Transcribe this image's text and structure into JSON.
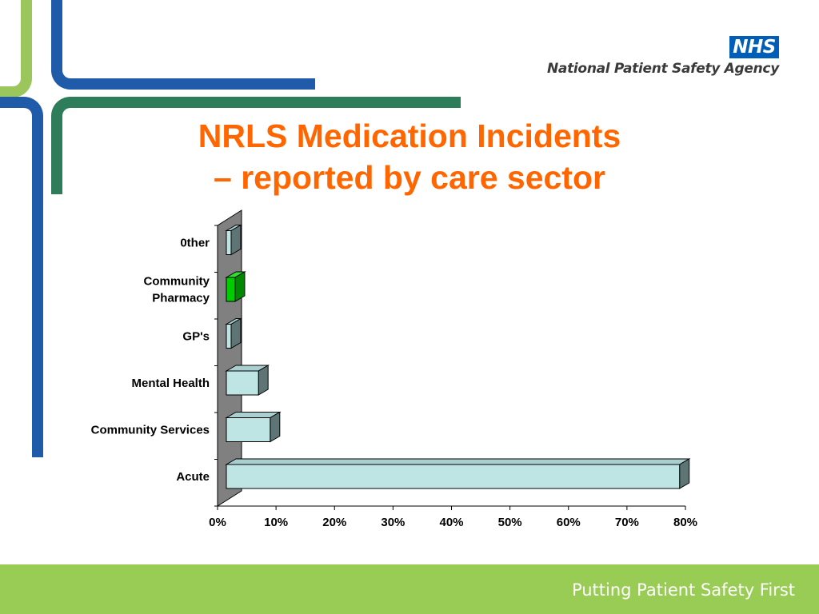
{
  "header": {
    "logo_text": "NHS",
    "org_name": "National Patient Safety Agency"
  },
  "slide": {
    "title_line1": "NRLS Medication Incidents",
    "title_line2": "– reported by care sector"
  },
  "footer": {
    "tagline": "Putting Patient Safety First"
  },
  "colors": {
    "title": "#ff6600",
    "bar_default": "#bfe4e4",
    "bar_highlight": "#00cc00",
    "wall": "#808080",
    "footer": "#99cc55",
    "nhs_blue": "#005eb8",
    "stripe_blue": "#1f5ba8",
    "stripe_green": "#2e7d5a",
    "stripe_lightgreen": "#9bc65c"
  },
  "chart_data": {
    "type": "bar",
    "orientation": "horizontal",
    "categories": [
      "Acute",
      "Community Services",
      "Mental  Health",
      "GP's",
      "Community Pharmacy",
      "0ther"
    ],
    "category_lines": [
      [
        "Acute"
      ],
      [
        "Community Services"
      ],
      [
        "Mental  Health"
      ],
      [
        "GP's"
      ],
      [
        "Community",
        "Pharmacy"
      ],
      [
        "0ther"
      ]
    ],
    "values": [
      79,
      9,
      7,
      1,
      3,
      2
    ],
    "highlight": [
      false,
      false,
      false,
      false,
      true,
      false
    ],
    "xlim": [
      0,
      80
    ],
    "xticks": [
      "0%",
      "10%",
      "20%",
      "30%",
      "40%",
      "50%",
      "60%",
      "70%",
      "80%"
    ],
    "xlabel": "",
    "ylabel": "",
    "grid": false,
    "style": "3d"
  }
}
